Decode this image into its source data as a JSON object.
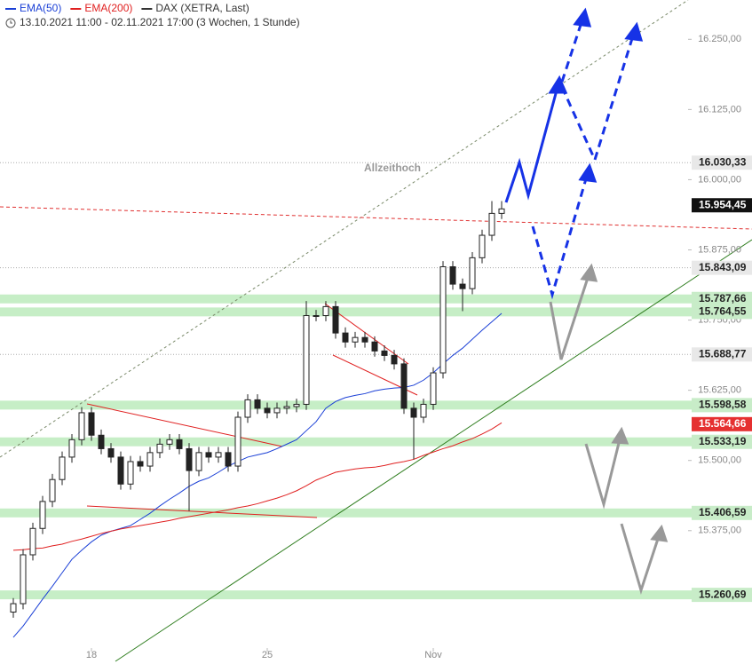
{
  "chart_data": {
    "type": "candlestick",
    "legend": [
      {
        "name": "EMA(50)",
        "color": "#1a3fd6"
      },
      {
        "name": "EMA(200)",
        "color": "#e02020"
      },
      {
        "name": "DAX (XETRA, Last)",
        "color": "#333333"
      }
    ],
    "subtitle": "13.10.2021 11:00 - 02.11.2021 17:00  (3 Wochen, 1 Stunde)",
    "annotation": "Allzeithoch",
    "categories": [
      null,
      null,
      null,
      null,
      null,
      null,
      null,
      null,
      "18",
      null,
      null,
      null,
      null,
      null,
      null,
      null,
      null,
      null,
      null,
      null,
      null,
      null,
      null,
      null,
      null,
      null,
      "25",
      null,
      null,
      null,
      null,
      null,
      null,
      null,
      null,
      null,
      null,
      null,
      null,
      null,
      null,
      null,
      null,
      "Nov",
      null,
      null,
      null,
      null,
      null,
      null,
      null
    ],
    "open": [
      15230,
      15245,
      15332,
      15379,
      15427,
      15466,
      15506,
      15537,
      15585,
      15545,
      15521,
      15506,
      15458,
      15498,
      15490,
      15514,
      15529,
      15537,
      15521,
      15482,
      15514,
      15506,
      15514,
      15490,
      15577,
      15608,
      15593,
      15585,
      15593,
      15596,
      15600,
      15758,
      15758,
      15774,
      15727,
      15711,
      15719,
      15711,
      15695,
      15687,
      15672,
      15593,
      15577,
      15600,
      15656,
      15845,
      15814,
      15806,
      15861,
      15901,
      15940
    ],
    "high": [
      15255,
      15342,
      15389,
      15437,
      15476,
      15516,
      15547,
      15595,
      15595,
      15555,
      15531,
      15516,
      15508,
      15508,
      15524,
      15539,
      15547,
      15547,
      15531,
      15524,
      15524,
      15524,
      15524,
      15587,
      15618,
      15618,
      15603,
      15603,
      15606,
      15610,
      15784,
      15768,
      15784,
      15784,
      15737,
      15729,
      15729,
      15721,
      15705,
      15697,
      15682,
      15603,
      15610,
      15666,
      15855,
      15855,
      15824,
      15871,
      15911,
      15962,
      15962
    ],
    "low": [
      15220,
      15235,
      15322,
      15369,
      15417,
      15456,
      15496,
      15527,
      15535,
      15511,
      15496,
      15448,
      15448,
      15480,
      15480,
      15504,
      15519,
      15511,
      15410,
      15472,
      15496,
      15496,
      15480,
      15480,
      15567,
      15583,
      15575,
      15575,
      15583,
      15586,
      15590,
      15748,
      15748,
      15717,
      15701,
      15701,
      15701,
      15685,
      15677,
      15662,
      15583,
      15502,
      15567,
      15590,
      15646,
      15804,
      15766,
      15796,
      15851,
      15891,
      15930
    ],
    "close": [
      15245,
      15332,
      15379,
      15427,
      15466,
      15506,
      15537,
      15585,
      15545,
      15521,
      15506,
      15458,
      15498,
      15490,
      15514,
      15529,
      15537,
      15521,
      15482,
      15514,
      15506,
      15514,
      15490,
      15577,
      15608,
      15593,
      15585,
      15593,
      15596,
      15600,
      15758,
      15758,
      15774,
      15727,
      15711,
      15719,
      15711,
      15695,
      15687,
      15672,
      15593,
      15577,
      15600,
      15656,
      15845,
      15814,
      15806,
      15861,
      15901,
      15940,
      15948
    ],
    "series": [
      {
        "name": "EMA(50)",
        "color": "#1a3fd6",
        "values": [
          15185,
          15205,
          15229,
          15253,
          15276,
          15300,
          15324,
          15340,
          15355,
          15367,
          15374,
          15379,
          15384,
          15395,
          15406,
          15419,
          15431,
          15442,
          15454,
          15463,
          15469,
          15479,
          15490,
          15498,
          15506,
          15510,
          15514,
          15521,
          15529,
          15537,
          15553,
          15569,
          15593,
          15605,
          15612,
          15616,
          15619,
          15624,
          15627,
          15629,
          15630,
          15634,
          15643,
          15656,
          15672,
          15687,
          15700,
          15716,
          15732,
          15747,
          15762
        ]
      },
      {
        "name": "EMA(200)",
        "color": "#e02020",
        "values": [
          15340,
          15341,
          15343,
          15344,
          15348,
          15351,
          15356,
          15360,
          15365,
          15370,
          15374,
          15378,
          15381,
          15384,
          15387,
          15390,
          15393,
          15397,
          15400,
          15403,
          15406,
          15409,
          15412,
          15416,
          15419,
          15423,
          15428,
          15433,
          15439,
          15446,
          15455,
          15465,
          15472,
          15479,
          15482,
          15485,
          15487,
          15488,
          15491,
          15495,
          15498,
          15502,
          15509,
          15515,
          15521,
          15526,
          15533,
          15539,
          15547,
          15556,
          15567
        ]
      }
    ],
    "ylim": [
      15166,
      16320
    ],
    "yticks": [
      {
        "value": 15375,
        "label": "15.375,00"
      },
      {
        "value": 15500,
        "label": "15.500,00"
      },
      {
        "value": 15625,
        "label": "15.625,00"
      },
      {
        "value": 15750,
        "label": "15.750,00"
      },
      {
        "value": 15875,
        "label": "15.875,00"
      },
      {
        "value": 16000,
        "label": "16.000,00"
      },
      {
        "value": 16125,
        "label": "16.125,00"
      },
      {
        "value": 16250,
        "label": "16.250,00"
      }
    ],
    "price_labels": [
      {
        "value": 16030.33,
        "label": "16.030,33",
        "kind": "line"
      },
      {
        "value": 15954.45,
        "label": "15.954,45",
        "kind": "last"
      },
      {
        "value": 15843.09,
        "label": "15.843,09",
        "kind": "line"
      },
      {
        "value": 15787.66,
        "label": "15.787,66",
        "kind": "zone"
      },
      {
        "value": 15764.55,
        "label": "15.764,55",
        "kind": "zone"
      },
      {
        "value": 15688.77,
        "label": "15.688,77",
        "kind": "line"
      },
      {
        "value": 15598.58,
        "label": "15.598,58",
        "kind": "zone"
      },
      {
        "value": 15564.66,
        "label": "15.564,66",
        "kind": "ema"
      },
      {
        "value": 15533.19,
        "label": "15.533,19",
        "kind": "zone"
      },
      {
        "value": 15406.59,
        "label": "15.406,59",
        "kind": "zone"
      },
      {
        "value": 15260.69,
        "label": "15.260,69",
        "kind": "zone"
      }
    ]
  }
}
